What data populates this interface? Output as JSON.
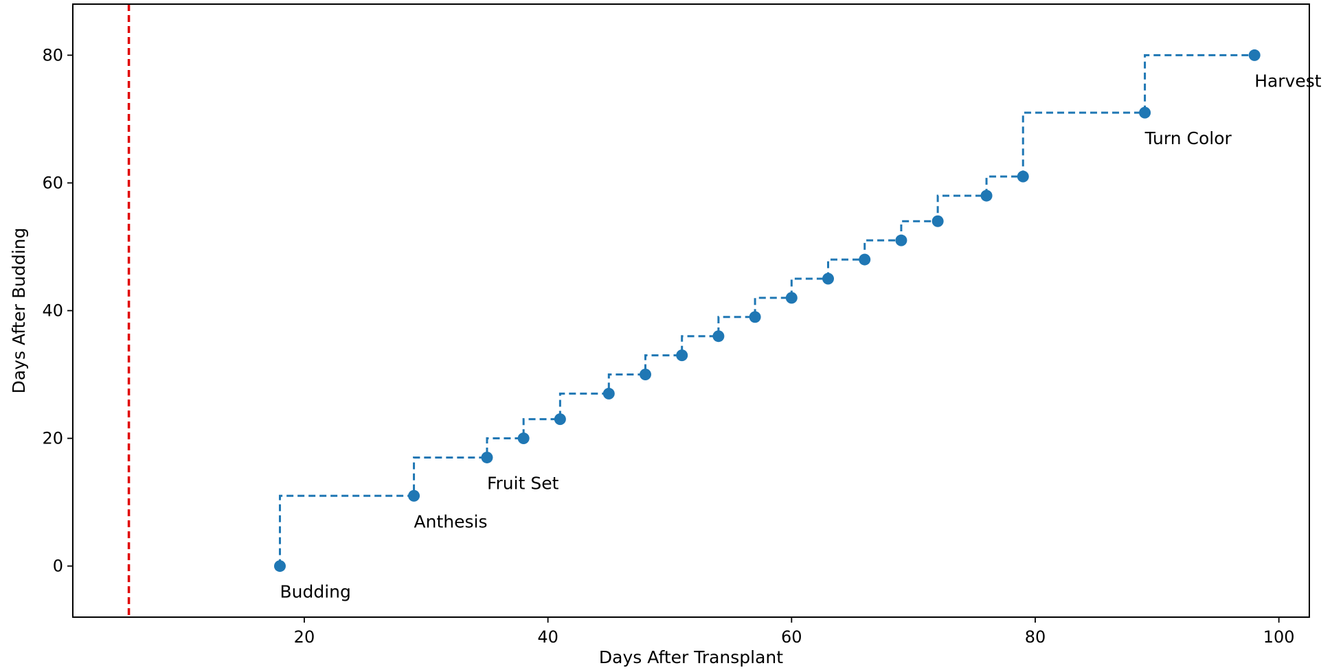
{
  "chart_data": {
    "type": "line",
    "xlabel": "Days After Transplant",
    "ylabel": "Days After Budding",
    "xlim": [
      1,
      102.5
    ],
    "ylim": [
      -8,
      88
    ],
    "xticks": [
      20,
      40,
      60,
      80,
      100
    ],
    "yticks": [
      0,
      20,
      40,
      60,
      80
    ],
    "grid": false,
    "legend": "none",
    "step": "post",
    "colors": {
      "series": "#1f77b4",
      "reference_line": "#e00000"
    },
    "reference_line_x": 5.6,
    "series": [
      {
        "x": [
          18,
          29,
          35,
          38,
          41,
          45,
          48,
          51,
          54,
          57,
          60,
          63,
          66,
          69,
          72,
          76,
          79,
          89,
          98
        ],
        "y": [
          0,
          11,
          17,
          20,
          23,
          27,
          30,
          33,
          36,
          39,
          42,
          45,
          48,
          51,
          54,
          58,
          61,
          71,
          80
        ]
      }
    ],
    "annotations": [
      {
        "text": "Budding",
        "x": 18,
        "y": 0
      },
      {
        "text": "Anthesis",
        "x": 29,
        "y": 11
      },
      {
        "text": "Fruit Set",
        "x": 35,
        "y": 17
      },
      {
        "text": "Turn Color",
        "x": 89,
        "y": 71
      },
      {
        "text": "Harvest",
        "x": 98,
        "y": 80
      }
    ]
  }
}
